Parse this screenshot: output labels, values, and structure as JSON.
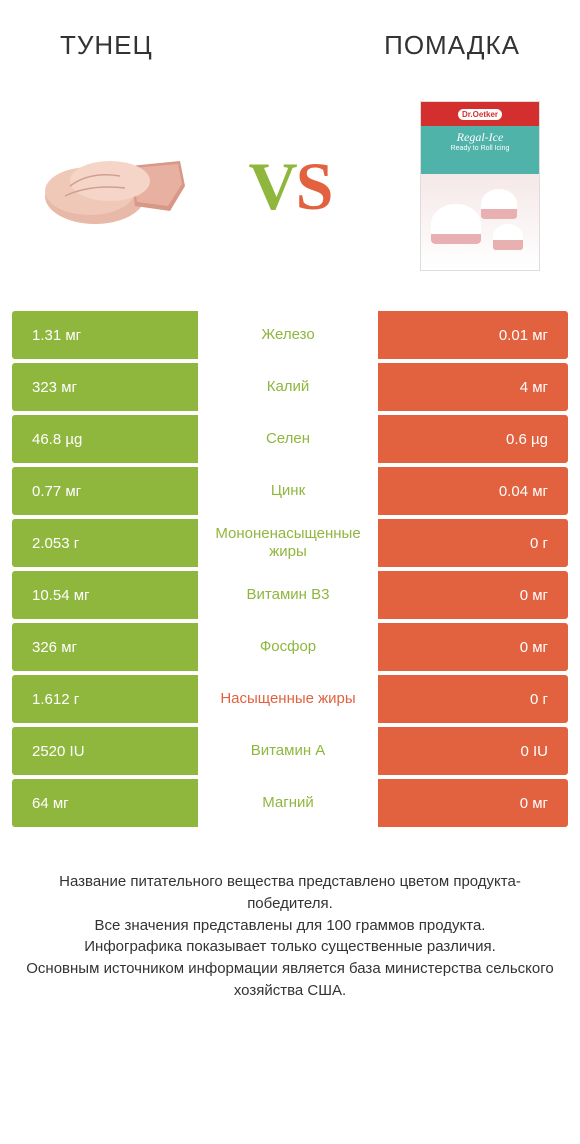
{
  "header": {
    "left_title": "ТУНЕЦ",
    "right_title": "ПОМАДКА"
  },
  "vs": {
    "v": "V",
    "s": "S"
  },
  "colors": {
    "green": "#8fb73e",
    "orange": "#e2623f",
    "text": "#333333"
  },
  "fondant": {
    "brand": "Dr.Oetker",
    "line1": "Regal-Ice",
    "line2": "Ready to Roll Icing"
  },
  "table": {
    "left_width_full": 186,
    "rows": [
      {
        "left": "1.31 мг",
        "mid": "Железо",
        "right": "0.01 мг",
        "winner": "left",
        "lw": 186
      },
      {
        "left": "323 мг",
        "mid": "Калий",
        "right": "4 мг",
        "winner": "left",
        "lw": 186
      },
      {
        "left": "46.8 µg",
        "mid": "Селен",
        "right": "0.6 µg",
        "winner": "left",
        "lw": 186
      },
      {
        "left": "0.77 мг",
        "mid": "Цинк",
        "right": "0.04 мг",
        "winner": "left",
        "lw": 186
      },
      {
        "left": "2.053 г",
        "mid": "Мононенасыщенные жиры",
        "right": "0 г",
        "winner": "left",
        "lw": 186
      },
      {
        "left": "10.54 мг",
        "mid": "Витамин B3",
        "right": "0 мг",
        "winner": "left",
        "lw": 186
      },
      {
        "left": "326 мг",
        "mid": "Фосфор",
        "right": "0 мг",
        "winner": "left",
        "lw": 186
      },
      {
        "left": "1.612 г",
        "mid": "Насыщенные жиры",
        "right": "0 г",
        "winner": "right",
        "lw": 186
      },
      {
        "left": "2520 IU",
        "mid": "Витамин A",
        "right": "0 IU",
        "winner": "left",
        "lw": 186
      },
      {
        "left": "64 мг",
        "mid": "Магний",
        "right": "0 мг",
        "winner": "left",
        "lw": 186
      }
    ]
  },
  "footer": {
    "l1": "Название питательного вещества представлено цветом продукта-победителя.",
    "l2": "Все значения представлены для 100 граммов продукта.",
    "l3": "Инфографика показывает только существенные различия.",
    "l4": "Основным источником информации является база министерства сельского хозяйства США."
  }
}
